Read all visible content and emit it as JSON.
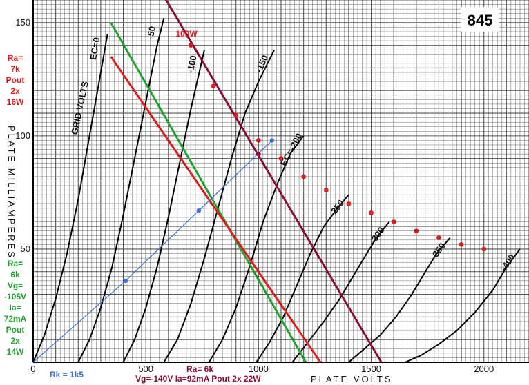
{
  "chart_data": {
    "type": "line",
    "title": "845",
    "xlabel": "PLATE VOLTS",
    "ylabel": "PLATE MILLIAMPERES",
    "xlim": [
      0,
      2200
    ],
    "ylim": [
      0,
      160
    ],
    "x_ticks": [
      "0",
      "500",
      "1000",
      "1500",
      "2000"
    ],
    "y_ticks": [
      "50",
      "100",
      "150"
    ],
    "grid": true,
    "curve_family_label": "GRID VOLTS",
    "curves": [
      {
        "label": "EC=0",
        "grid_v": 0,
        "points": [
          [
            0,
            0
          ],
          [
            50,
            12
          ],
          [
            100,
            28
          ],
          [
            150,
            48
          ],
          [
            200,
            72
          ],
          [
            250,
            100
          ],
          [
            300,
            128
          ],
          [
            330,
            145
          ]
        ]
      },
      {
        "label": "-50",
        "grid_v": -50,
        "points": [
          [
            200,
            0
          ],
          [
            250,
            10
          ],
          [
            300,
            24
          ],
          [
            350,
            42
          ],
          [
            400,
            65
          ],
          [
            450,
            90
          ],
          [
            500,
            115
          ],
          [
            550,
            140
          ],
          [
            580,
            152
          ]
        ]
      },
      {
        "label": "-100",
        "grid_v": -100,
        "points": [
          [
            400,
            0
          ],
          [
            450,
            10
          ],
          [
            500,
            24
          ],
          [
            550,
            42
          ],
          [
            600,
            64
          ],
          [
            650,
            88
          ],
          [
            700,
            112
          ],
          [
            760,
            138
          ]
        ]
      },
      {
        "label": "-150",
        "grid_v": -150,
        "points": [
          [
            580,
            0
          ],
          [
            640,
            10
          ],
          [
            700,
            26
          ],
          [
            760,
            46
          ],
          [
            820,
            68
          ],
          [
            880,
            90
          ],
          [
            940,
            110
          ],
          [
            1000,
            124
          ],
          [
            1070,
            138
          ]
        ]
      },
      {
        "label": "EC=-200",
        "grid_v": -200,
        "points": [
          [
            780,
            0
          ],
          [
            840,
            10
          ],
          [
            900,
            24
          ],
          [
            960,
            42
          ],
          [
            1020,
            62
          ],
          [
            1080,
            78
          ],
          [
            1140,
            92
          ],
          [
            1200,
            100
          ]
        ]
      },
      {
        "label": "-250",
        "grid_v": -250,
        "points": [
          [
            990,
            0
          ],
          [
            1050,
            9
          ],
          [
            1110,
            20
          ],
          [
            1170,
            34
          ],
          [
            1230,
            48
          ],
          [
            1290,
            60
          ],
          [
            1350,
            68
          ],
          [
            1400,
            74
          ]
        ]
      },
      {
        "label": "-300",
        "grid_v": -300,
        "points": [
          [
            1150,
            0
          ],
          [
            1220,
            9
          ],
          [
            1290,
            18
          ],
          [
            1360,
            28
          ],
          [
            1420,
            38
          ],
          [
            1480,
            48
          ],
          [
            1530,
            56
          ],
          [
            1580,
            62
          ]
        ]
      },
      {
        "label": "-350",
        "grid_v": -350,
        "points": [
          [
            1400,
            0
          ],
          [
            1470,
            6
          ],
          [
            1540,
            12
          ],
          [
            1610,
            20
          ],
          [
            1680,
            30
          ],
          [
            1740,
            40
          ],
          [
            1790,
            48
          ],
          [
            1850,
            55
          ]
        ]
      },
      {
        "label": "-400",
        "grid_v": -400,
        "points": [
          [
            1650,
            0
          ],
          [
            1720,
            3
          ],
          [
            1800,
            8
          ],
          [
            1880,
            14
          ],
          [
            1960,
            22
          ],
          [
            2040,
            32
          ],
          [
            2100,
            42
          ],
          [
            2160,
            50
          ]
        ]
      }
    ],
    "load_lines": [
      {
        "color": "#1fa22d",
        "points": [
          [
            345,
            150
          ],
          [
            1210,
            0
          ]
        ]
      },
      {
        "color": "#e01b1b",
        "points": [
          [
            345,
            135
          ],
          [
            1275,
            0
          ]
        ]
      },
      {
        "color": "#8b0a3a",
        "points": [
          [
            560,
            165
          ],
          [
            1545,
            0
          ]
        ]
      }
    ],
    "cathode_line": {
      "color": "#3f6fd8",
      "points": [
        [
          0,
          0
        ],
        [
          410,
          36
        ],
        [
          735,
          67
        ],
        [
          1060,
          98
        ]
      ]
    },
    "dissipation_points": [
      [
        700,
        140
      ],
      [
        800,
        122
      ],
      [
        900,
        109
      ],
      [
        1000,
        98
      ],
      [
        1100,
        90
      ],
      [
        1200,
        82
      ],
      [
        1300,
        76
      ],
      [
        1400,
        70
      ],
      [
        1500,
        66
      ],
      [
        1600,
        62
      ],
      [
        1700,
        58
      ],
      [
        1800,
        55
      ],
      [
        1900,
        52
      ],
      [
        2000,
        50
      ]
    ],
    "dissipation_label": "100W",
    "annotations_left": [
      {
        "lines": [
          "Ra=",
          "7k",
          "Pout",
          "2x",
          "16W"
        ],
        "color": "#e01b1b"
      },
      {
        "lines": [
          "Ra=",
          "6k",
          "Vg=",
          "-105V",
          "Ia=",
          "72mA",
          "Pout",
          "2x",
          "14W"
        ],
        "color": "#1fa22d"
      }
    ],
    "annotation_rk": {
      "text": "Rk = 1k5",
      "color": "#3f6fd8"
    },
    "annotation_bottom": {
      "lines": [
        "Ra= 6k",
        "Vg=-140V Ia=92mA  Pout 2x 22W"
      ],
      "color": "#8b0a3a"
    }
  }
}
